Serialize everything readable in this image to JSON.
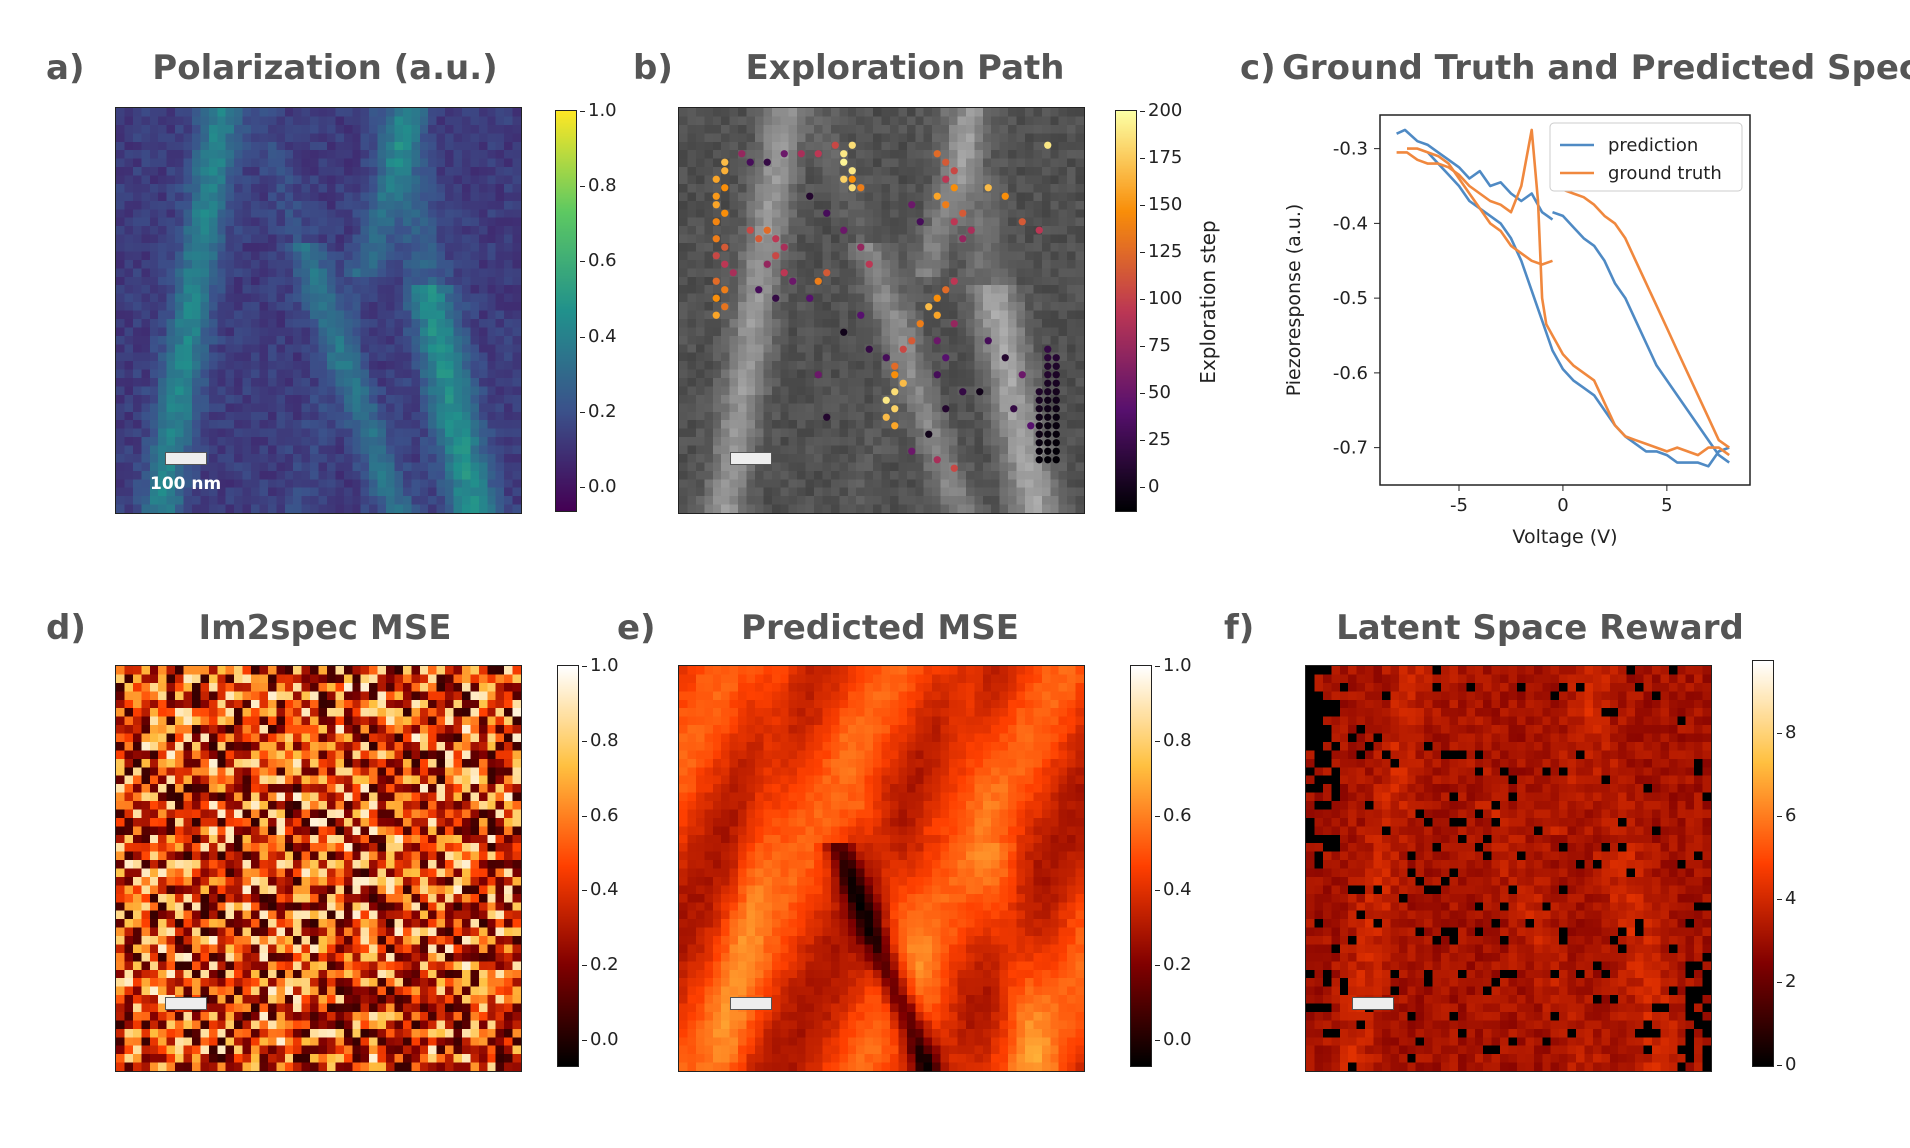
{
  "panels": {
    "a": {
      "letter": "a)",
      "title": "Polarization  (a.u.)",
      "scale_label": "100 nm",
      "colorbar_ticks": [
        "1.0",
        "0.8",
        "0.6",
        "0.4",
        "0.2",
        "0.0"
      ],
      "colormap": "viridis"
    },
    "b": {
      "letter": "b)",
      "title": "Exploration Path",
      "colorbar_label": "Exploration step",
      "colorbar_ticks": [
        "200",
        "175",
        "150",
        "125",
        "100",
        "75",
        "50",
        "25",
        "0"
      ],
      "colormap": "inferno"
    },
    "c": {
      "letter": "c)",
      "title": "Ground Truth and Predicted Spectra"
    },
    "d": {
      "letter": "d)",
      "title": "Im2spec MSE",
      "colorbar_ticks": [
        "1.0",
        "0.8",
        "0.6",
        "0.4",
        "0.2",
        "0.0"
      ],
      "colormap": "afmhot"
    },
    "e": {
      "letter": "e)",
      "title": "Predicted MSE",
      "colorbar_ticks": [
        "1.0",
        "0.8",
        "0.6",
        "0.4",
        "0.2",
        "0.0"
      ],
      "colormap": "afmhot"
    },
    "f": {
      "letter": "f)",
      "title": "Latent Space Reward",
      "colorbar_ticks": [
        "8",
        "6",
        "4",
        "2",
        "0"
      ],
      "colormap": "afmhot"
    }
  },
  "chart_data": [
    {
      "type": "line",
      "title": "Ground Truth and Predicted Spectra",
      "xlabel": "Voltage (V)",
      "ylabel": "Piezoresponse (a.u.)",
      "xlim": [
        -8.8,
        9.0
      ],
      "ylim": [
        -0.75,
        -0.255
      ],
      "xticks": [
        "-5",
        "0",
        "5"
      ],
      "xtick_values": [
        -5,
        0,
        5
      ],
      "yticks": [
        "-0.3",
        "-0.4",
        "-0.5",
        "-0.6",
        "-0.7"
      ],
      "ytick_values": [
        -0.3,
        -0.4,
        -0.5,
        -0.6,
        -0.7
      ],
      "legend": "top-right",
      "series": [
        {
          "name": "prediction",
          "color": "#4f8ac4",
          "segments": [
            {
              "x": [
                -8.0,
                -7.6,
                -7.0,
                -6.5,
                -6.0,
                -5.5,
                -5.0,
                -4.5,
                -4.0,
                -3.5,
                -3.0,
                -2.5,
                -2.0,
                -1.5,
                -1.0,
                -0.5
              ],
              "y": [
                -0.28,
                -0.275,
                -0.29,
                -0.295,
                -0.305,
                -0.315,
                -0.325,
                -0.34,
                -0.33,
                -0.35,
                -0.345,
                -0.36,
                -0.37,
                -0.36,
                -0.385,
                -0.395
              ]
            },
            {
              "x": [
                -6.5,
                -6.0,
                -5.5,
                -5.0,
                -4.5,
                -4.0,
                -3.5,
                -3.0,
                -2.5,
                -2.0,
                -1.5,
                -1.0,
                -0.5,
                0.0,
                0.5,
                1.0,
                1.5,
                2.0,
                2.5,
                3.0,
                3.5,
                4.0,
                4.5,
                5.0,
                5.5,
                6.0,
                6.5,
                7.0,
                7.5,
                8.0
              ],
              "y": [
                -0.305,
                -0.32,
                -0.335,
                -0.35,
                -0.37,
                -0.38,
                -0.39,
                -0.4,
                -0.42,
                -0.45,
                -0.49,
                -0.53,
                -0.57,
                -0.595,
                -0.61,
                -0.62,
                -0.63,
                -0.65,
                -0.67,
                -0.685,
                -0.695,
                -0.705,
                -0.705,
                -0.71,
                -0.72,
                -0.72,
                -0.72,
                -0.725,
                -0.705,
                -0.7
              ]
            },
            {
              "x": [
                -0.5,
                0.0,
                0.5,
                1.0,
                1.5,
                2.0,
                2.5,
                3.0,
                3.5,
                4.0,
                4.5,
                5.0,
                5.5,
                6.0,
                6.5,
                7.0,
                7.5,
                8.0
              ],
              "y": [
                -0.385,
                -0.39,
                -0.405,
                -0.42,
                -0.43,
                -0.45,
                -0.48,
                -0.5,
                -0.53,
                -0.56,
                -0.59,
                -0.61,
                -0.63,
                -0.65,
                -0.67,
                -0.69,
                -0.71,
                -0.72
              ]
            }
          ]
        },
        {
          "name": "ground truth",
          "color": "#f0883e",
          "segments": [
            {
              "x": [
                -8.0,
                -7.5,
                -7.0,
                -6.5,
                -6.0,
                -5.5,
                -5.0,
                -4.5,
                -4.0,
                -3.5,
                -3.0,
                -2.5,
                -2.0,
                -1.5,
                -1.2,
                -1.0,
                -0.8,
                -0.5,
                -0.3,
                0.0,
                0.5,
                1.0,
                1.5,
                2.0,
                2.5,
                3.0,
                3.5,
                4.0,
                4.5,
                5.0,
                5.5,
                6.0,
                6.5,
                7.0,
                7.5,
                8.0
              ],
              "y": [
                -0.305,
                -0.305,
                -0.315,
                -0.32,
                -0.32,
                -0.325,
                -0.335,
                -0.35,
                -0.36,
                -0.37,
                -0.375,
                -0.385,
                -0.35,
                -0.275,
                -0.37,
                -0.5,
                -0.535,
                -0.55,
                -0.56,
                -0.575,
                -0.59,
                -0.6,
                -0.61,
                -0.64,
                -0.67,
                -0.685,
                -0.69,
                -0.695,
                -0.7,
                -0.705,
                -0.7,
                -0.705,
                -0.71,
                -0.7,
                -0.7,
                -0.71
              ]
            },
            {
              "x": [
                -7.5,
                -7.0,
                -6.5,
                -6.0,
                -5.5,
                -5.0,
                -4.5,
                -4.0,
                -3.5,
                -3.0,
                -2.5,
                -2.0,
                -1.5,
                -1.0,
                -0.5
              ],
              "y": [
                -0.3,
                -0.3,
                -0.305,
                -0.31,
                -0.32,
                -0.34,
                -0.36,
                -0.38,
                -0.4,
                -0.41,
                -0.43,
                -0.44,
                -0.45,
                -0.455,
                -0.45
              ]
            },
            {
              "x": [
                -0.5,
                0.0,
                0.5,
                1.0,
                1.5,
                2.0,
                2.5,
                3.0,
                3.5,
                4.0,
                4.5,
                5.0,
                5.5,
                6.0,
                6.5,
                7.0,
                7.5,
                8.0
              ],
              "y": [
                -0.35,
                -0.355,
                -0.36,
                -0.365,
                -0.375,
                -0.39,
                -0.4,
                -0.42,
                -0.45,
                -0.48,
                -0.51,
                -0.54,
                -0.57,
                -0.6,
                -0.63,
                -0.66,
                -0.69,
                -0.7
              ]
            }
          ]
        }
      ]
    },
    {
      "type": "scatter",
      "title": "Exploration Path",
      "description_scale": "grid 48x48, colored by exploration step 0-200",
      "points": [
        [
          5,
          6,
          170
        ],
        [
          5,
          7,
          165
        ],
        [
          4,
          8,
          160
        ],
        [
          5,
          9,
          150
        ],
        [
          4,
          10,
          155
        ],
        [
          4,
          11,
          160
        ],
        [
          5,
          12,
          150
        ],
        [
          4,
          13,
          145
        ],
        [
          4,
          15,
          140
        ],
        [
          5,
          16,
          120
        ],
        [
          4,
          17,
          110
        ],
        [
          5,
          18,
          100
        ],
        [
          6,
          19,
          90
        ],
        [
          4,
          20,
          130
        ],
        [
          5,
          21,
          140
        ],
        [
          4,
          22,
          150
        ],
        [
          5,
          23,
          135
        ],
        [
          4,
          24,
          160
        ],
        [
          7,
          5,
          80
        ],
        [
          8,
          6,
          40
        ],
        [
          10,
          6,
          30
        ],
        [
          12,
          5,
          60
        ],
        [
          14,
          5,
          90
        ],
        [
          16,
          5,
          100
        ],
        [
          18,
          4,
          110
        ],
        [
          19,
          5,
          190
        ],
        [
          20,
          4,
          185
        ],
        [
          19,
          6,
          195
        ],
        [
          20,
          7,
          190
        ],
        [
          19,
          8,
          180
        ],
        [
          20,
          9,
          185
        ],
        [
          8,
          14,
          110
        ],
        [
          9,
          15,
          120
        ],
        [
          10,
          14,
          130
        ],
        [
          11,
          15,
          100
        ],
        [
          12,
          16,
          90
        ],
        [
          11,
          17,
          110
        ],
        [
          10,
          18,
          80
        ],
        [
          12,
          19,
          100
        ],
        [
          13,
          20,
          60
        ],
        [
          9,
          21,
          40
        ],
        [
          11,
          22,
          30
        ],
        [
          15,
          10,
          20
        ],
        [
          17,
          12,
          40
        ],
        [
          19,
          14,
          60
        ],
        [
          21,
          16,
          80
        ],
        [
          22,
          18,
          100
        ],
        [
          17,
          19,
          120
        ],
        [
          16,
          20,
          140
        ],
        [
          15,
          22,
          50
        ],
        [
          20,
          8,
          150
        ],
        [
          21,
          9,
          140
        ],
        [
          30,
          5,
          130
        ],
        [
          31,
          6,
          120
        ],
        [
          32,
          7,
          110
        ],
        [
          31,
          8,
          100
        ],
        [
          32,
          9,
          150
        ],
        [
          30,
          10,
          160
        ],
        [
          31,
          11,
          140
        ],
        [
          33,
          12,
          120
        ],
        [
          32,
          13,
          100
        ],
        [
          34,
          14,
          90
        ],
        [
          33,
          15,
          80
        ],
        [
          27,
          11,
          60
        ],
        [
          28,
          13,
          40
        ],
        [
          36,
          9,
          170
        ],
        [
          38,
          10,
          150
        ],
        [
          40,
          13,
          120
        ],
        [
          42,
          14,
          100
        ],
        [
          43,
          4,
          190
        ],
        [
          32,
          20,
          100
        ],
        [
          31,
          21,
          130
        ],
        [
          30,
          22,
          150
        ],
        [
          29,
          23,
          170
        ],
        [
          30,
          24,
          160
        ],
        [
          28,
          25,
          140
        ],
        [
          27,
          27,
          120
        ],
        [
          26,
          28,
          110
        ],
        [
          25,
          30,
          130
        ],
        [
          25,
          31,
          150
        ],
        [
          26,
          32,
          170
        ],
        [
          25,
          33,
          185
        ],
        [
          24,
          34,
          190
        ],
        [
          25,
          35,
          180
        ],
        [
          24,
          36,
          170
        ],
        [
          25,
          37,
          160
        ],
        [
          32,
          25,
          80
        ],
        [
          30,
          27,
          60
        ],
        [
          31,
          29,
          50
        ],
        [
          30,
          31,
          40
        ],
        [
          33,
          33,
          30
        ],
        [
          31,
          35,
          20
        ],
        [
          29,
          38,
          10
        ],
        [
          27,
          40,
          60
        ],
        [
          30,
          41,
          90
        ],
        [
          32,
          42,
          110
        ],
        [
          36,
          27,
          40
        ],
        [
          38,
          29,
          20
        ],
        [
          40,
          31,
          60
        ],
        [
          39,
          35,
          30
        ],
        [
          41,
          37,
          50
        ],
        [
          42,
          38,
          70
        ],
        [
          35,
          33,
          10
        ],
        [
          43,
          28,
          30
        ],
        [
          43,
          29,
          25
        ],
        [
          43,
          30,
          20
        ],
        [
          43,
          31,
          20
        ],
        [
          43,
          32,
          15
        ],
        [
          43,
          33,
          15
        ],
        [
          43,
          34,
          10
        ],
        [
          43,
          35,
          10
        ],
        [
          43,
          36,
          8
        ],
        [
          43,
          37,
          6
        ],
        [
          43,
          38,
          5
        ],
        [
          43,
          39,
          4
        ],
        [
          43,
          40,
          3
        ],
        [
          43,
          41,
          2
        ],
        [
          42,
          33,
          18
        ],
        [
          42,
          34,
          14
        ],
        [
          42,
          35,
          12
        ],
        [
          42,
          36,
          10
        ],
        [
          42,
          37,
          9
        ],
        [
          42,
          38,
          7
        ],
        [
          42,
          39,
          6
        ],
        [
          42,
          40,
          4
        ],
        [
          42,
          41,
          3
        ],
        [
          44,
          29,
          22
        ],
        [
          44,
          30,
          18
        ],
        [
          44,
          31,
          16
        ],
        [
          44,
          32,
          14
        ],
        [
          44,
          33,
          12
        ],
        [
          44,
          34,
          10
        ],
        [
          44,
          35,
          8
        ],
        [
          44,
          36,
          6
        ],
        [
          44,
          37,
          5
        ],
        [
          44,
          38,
          4
        ],
        [
          44,
          39,
          3
        ],
        [
          44,
          40,
          2
        ],
        [
          44,
          41,
          1
        ],
        [
          19,
          26,
          10
        ],
        [
          22,
          28,
          30
        ],
        [
          24,
          29,
          40
        ],
        [
          17,
          36,
          20
        ],
        [
          16,
          31,
          60
        ],
        [
          21,
          24,
          50
        ]
      ]
    }
  ]
}
